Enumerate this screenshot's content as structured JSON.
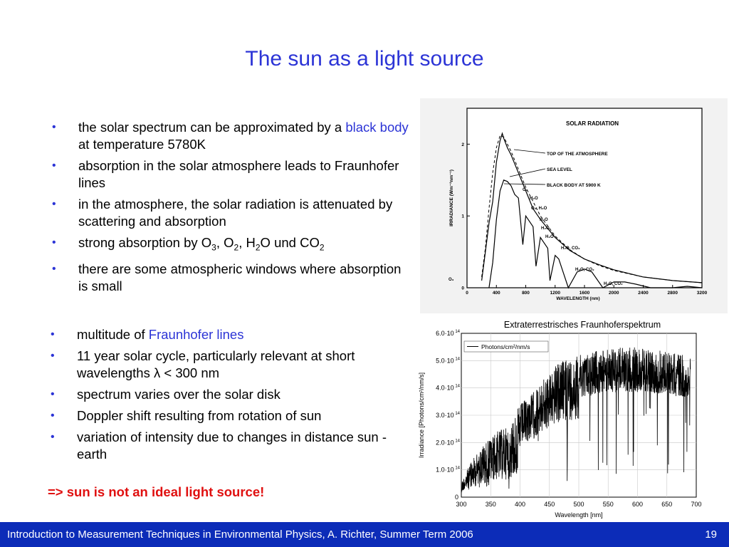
{
  "title": "The sun as a light source",
  "bullets_top": [
    {
      "type": "mixed",
      "parts": [
        "the solar spectrum can be approximated by a ",
        "black body",
        " at temperature 5780K"
      ]
    },
    {
      "type": "plain",
      "text": "absorption in the solar atmosphere leads to Fraunhofer lines"
    },
    {
      "type": "plain",
      "text": "in the atmosphere, the solar radiation is attenuated by scattering and absorption"
    },
    {
      "type": "chem",
      "parts": [
        "strong absorption by O",
        "3",
        ", O",
        "2",
        ", H",
        "2",
        "O und CO",
        "2"
      ]
    },
    {
      "type": "plain",
      "text": "there are some atmospheric windows where absorption is small"
    }
  ],
  "bullets_bottom": [
    {
      "type": "mixed",
      "parts": [
        "multitude of ",
        "Fraunhofer lines",
        ""
      ]
    },
    {
      "type": "plain",
      "text": "11 year solar cycle, particularly relevant at short wavelengths λ < 300 nm"
    },
    {
      "type": "plain",
      "text": "spectrum varies over the solar disk"
    },
    {
      "type": "plain",
      "text": "Doppler shift resulting from rotation of sun"
    },
    {
      "type": "plain",
      "text": "variation of intensity due to changes in distance sun - earth"
    }
  ],
  "bullet_symbol": "•",
  "conclusion": "=> sun is not an ideal light source!",
  "footer": {
    "text": "Introduction to Measurement Techniques in Environmental Physics, A. Richter, Summer Term 2006",
    "page": "19"
  },
  "chart_data": [
    {
      "type": "line",
      "title": "SOLAR RADIATION",
      "xlabel": "WAVELENGTH (nm)",
      "ylabel": "IRRADIANCE (Wm⁻²nm⁻¹)",
      "xlim": [
        0,
        3200
      ],
      "ylim": [
        0,
        2.5
      ],
      "x_ticks": [
        "0",
        "400",
        "800",
        "1200",
        "1600",
        "2000",
        "2400",
        "2800",
        "3200"
      ],
      "y_ticks": [
        "0",
        "1",
        "2"
      ],
      "legend_labels": [
        "TOP OF THE ATMOSPHERE",
        "SEA LEVEL",
        "BLACK BODY AT 5900 K"
      ],
      "absorption_labels": [
        "O₂",
        "H₂O",
        "O₂, H₂O",
        "H₂O",
        "H₂O",
        "H₂O",
        "H₂O, CO₂",
        "H₂O, CO₂",
        "H₂O, CO₂",
        "O₃"
      ],
      "series": [
        {
          "name": "TOP OF THE ATMOSPHERE",
          "x": [
            200,
            250,
            300,
            350,
            400,
            450,
            480,
            500,
            550,
            600,
            700,
            800,
            900,
            1000,
            1200,
            1400,
            1600,
            1800,
            2000,
            2400,
            2800,
            3200
          ],
          "y": [
            0.1,
            0.5,
            0.9,
            1.2,
            1.75,
            2.05,
            2.15,
            2.08,
            1.95,
            1.85,
            1.6,
            1.35,
            1.1,
            0.95,
            0.7,
            0.52,
            0.4,
            0.32,
            0.25,
            0.15,
            0.1,
            0.07
          ]
        },
        {
          "name": "SEA LEVEL",
          "x": [
            300,
            350,
            400,
            450,
            500,
            550,
            600,
            650,
            700,
            760,
            800,
            900,
            940,
            1000,
            1100,
            1130,
            1200,
            1250,
            1380,
            1500,
            1600,
            1700,
            1850,
            2000,
            2150,
            2300,
            2500,
            2800,
            3000,
            3200
          ],
          "y": [
            0.0,
            0.35,
            0.95,
            1.35,
            1.5,
            1.48,
            1.42,
            1.3,
            1.25,
            0.6,
            1.0,
            0.85,
            0.3,
            0.7,
            0.55,
            0.1,
            0.45,
            0.4,
            0.0,
            0.22,
            0.26,
            0.22,
            0.0,
            0.08,
            0.08,
            0.05,
            0.0,
            0.0,
            0.02,
            0.0
          ]
        },
        {
          "name": "BLACK BODY AT 5900 K",
          "x": [
            200,
            250,
            300,
            350,
            400,
            450,
            500,
            550,
            600,
            700,
            800,
            1000,
            1200,
            1400,
            1600,
            1800,
            2000,
            2400,
            2800,
            3200
          ],
          "y": [
            0.15,
            0.55,
            1.1,
            1.6,
            1.95,
            2.12,
            2.1,
            2.0,
            1.9,
            1.65,
            1.4,
            1.0,
            0.72,
            0.53,
            0.4,
            0.31,
            0.24,
            0.15,
            0.1,
            0.07
          ]
        }
      ]
    },
    {
      "type": "line",
      "title": "Extraterrestrisches Fraunhoferspektrum",
      "xlabel": "Wavelength [nm]",
      "ylabel": "Irradiance [Photons/cm²/nm/s]",
      "xlim": [
        300,
        700
      ],
      "ylim": [
        0,
        600000000000000.0
      ],
      "x_ticks": [
        "300",
        "350",
        "400",
        "450",
        "500",
        "550",
        "600",
        "650",
        "700"
      ],
      "y_ticks": [
        {
          "mant": "0",
          "exp": ""
        },
        {
          "mant": "1.0·10",
          "exp": "14"
        },
        {
          "mant": "2.0·10",
          "exp": "14"
        },
        {
          "mant": "3.0·10",
          "exp": "14"
        },
        {
          "mant": "4.0·10",
          "exp": "14"
        },
        {
          "mant": "5.0·10",
          "exp": "14"
        },
        {
          "mant": "6.0·10",
          "exp": "14"
        }
      ],
      "legend": "Photons/cm²/nm/s",
      "series": [
        {
          "name": "Photons/cm²/nm/s",
          "x": [
            300,
            320,
            340,
            360,
            380,
            400,
            420,
            440,
            460,
            480,
            500,
            520,
            540,
            560,
            580,
            600,
            620,
            640,
            660,
            680,
            690
          ],
          "y": [
            60000000000000.0,
            140000000000000.0,
            200000000000000.0,
            240000000000000.0,
            260000000000000.0,
            340000000000000.0,
            380000000000000.0,
            430000000000000.0,
            480000000000000.0,
            510000000000000.0,
            520000000000000.0,
            530000000000000.0,
            540000000000000.0,
            545000000000000.0,
            550000000000000.0,
            550000000000000.0,
            545000000000000.0,
            540000000000000.0,
            530000000000000.0,
            520000000000000.0,
            510000000000000.0
          ]
        }
      ]
    }
  ]
}
